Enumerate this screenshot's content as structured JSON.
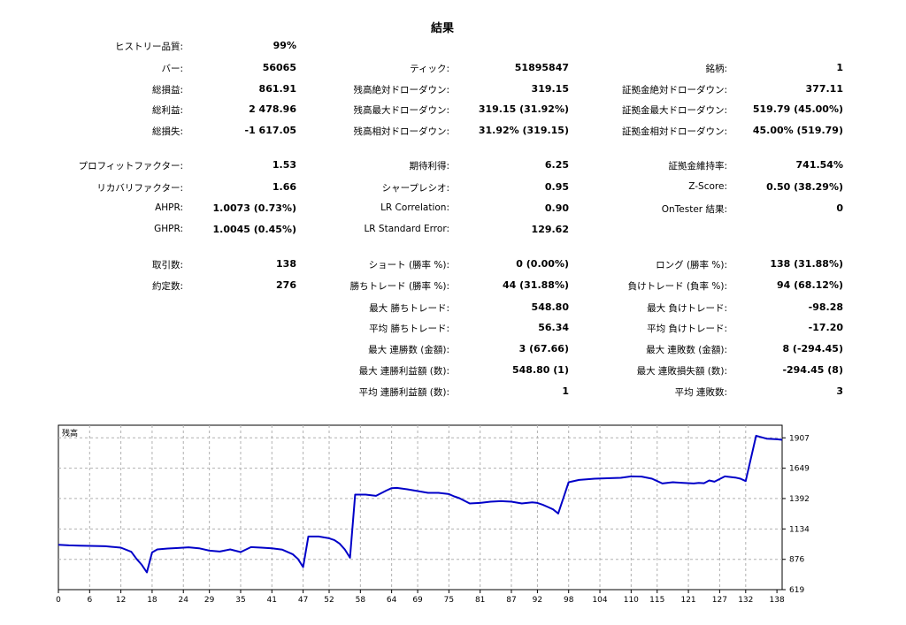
{
  "title": "結果",
  "rows": [
    [
      [
        "ヒストリー品質:",
        "99%"
      ],
      null,
      null
    ],
    [
      [
        "バー:",
        "56065"
      ],
      [
        "ティック:",
        "51895847"
      ],
      [
        "銘柄:",
        "1"
      ]
    ],
    [
      [
        "総損益:",
        "861.91"
      ],
      [
        "残高絶対ドローダウン:",
        "319.15"
      ],
      [
        "証拠金絶対ドローダウン:",
        "377.11"
      ]
    ],
    [
      [
        "総利益:",
        "2 478.96"
      ],
      [
        "残高最大ドローダウン:",
        "319.15 (31.92%)"
      ],
      [
        "証拠金最大ドローダウン:",
        "519.79 (45.00%)"
      ]
    ],
    [
      [
        "総損失:",
        "-1 617.05"
      ],
      [
        "残高相対ドローダウン:",
        "31.92% (319.15)"
      ],
      [
        "証拠金相対ドローダウン:",
        "45.00% (519.79)"
      ]
    ],
    [
      [
        "プロフィットファクター:",
        "1.53"
      ],
      [
        "期待利得:",
        "6.25"
      ],
      [
        "証拠金維持率:",
        "741.54%"
      ]
    ],
    [
      [
        "リカバリファクター:",
        "1.66"
      ],
      [
        "シャープレシオ:",
        "0.95"
      ],
      [
        "Z-Score:",
        "0.50 (38.29%)"
      ]
    ],
    [
      [
        "AHPR:",
        "1.0073 (0.73%)"
      ],
      [
        "LR Correlation:",
        "0.90"
      ],
      [
        "OnTester 結果:",
        "0"
      ]
    ],
    [
      [
        "GHPR:",
        "1.0045 (0.45%)"
      ],
      [
        "LR Standard Error:",
        "129.62"
      ],
      null
    ],
    [
      [
        "取引数:",
        "138"
      ],
      [
        "ショート (勝率 %):",
        "0 (0.00%)"
      ],
      [
        "ロング (勝率 %):",
        "138 (31.88%)"
      ]
    ],
    [
      [
        "約定数:",
        "276"
      ],
      [
        "勝ちトレード (勝率 %):",
        "44 (31.88%)"
      ],
      [
        "負けトレード (負率 %):",
        "94 (68.12%)"
      ]
    ],
    [
      null,
      [
        "最大 勝ちトレード:",
        "548.80"
      ],
      [
        "最大 負けトレード:",
        "-98.28"
      ]
    ],
    [
      null,
      [
        "平均 勝ちトレード:",
        "56.34"
      ],
      [
        "平均 負けトレード:",
        "-17.20"
      ]
    ],
    [
      null,
      [
        "最大 連勝数 (金額):",
        "3 (67.66)"
      ],
      [
        "最大 連敗数 (金額):",
        "8 (-294.45)"
      ]
    ],
    [
      null,
      [
        "最大 連勝利益額 (数):",
        "548.80 (1)"
      ],
      [
        "最大 連敗損失額 (数):",
        "-294.45 (8)"
      ]
    ],
    [
      null,
      [
        "平均 連勝利益額 (数):",
        "1"
      ],
      [
        "平均 連敗数:",
        "3"
      ]
    ]
  ],
  "chart_data": {
    "type": "line",
    "title": "残高",
    "x_ticks": [
      0,
      6,
      12,
      18,
      24,
      29,
      35,
      41,
      47,
      52,
      58,
      64,
      69,
      75,
      81,
      87,
      92,
      98,
      104,
      110,
      115,
      121,
      127,
      132,
      138
    ],
    "y_ticks": [
      619,
      876,
      1134,
      1392,
      1649,
      1907
    ],
    "xlim": [
      0,
      139
    ],
    "ylim": [
      619,
      2014
    ],
    "grid": true,
    "line_color": "#0000c8",
    "series": [
      {
        "name": "",
        "x": [
          0,
          2,
          4,
          6,
          9,
          12,
          14,
          15,
          16,
          17,
          18,
          19,
          21,
          23,
          25,
          27,
          29,
          31,
          33,
          35,
          37,
          39,
          41,
          43,
          45,
          46,
          47,
          48,
          50,
          52,
          53,
          54,
          55,
          56,
          57,
          59,
          61,
          63,
          64,
          65,
          67,
          69,
          71,
          73,
          75,
          76,
          77,
          79,
          81,
          83,
          85,
          87,
          89,
          91,
          92,
          93,
          94,
          95,
          96,
          98,
          100,
          103,
          106,
          108,
          110,
          112,
          114,
          115,
          116,
          118,
          120,
          122,
          123,
          124,
          125,
          126,
          128,
          130,
          131,
          132,
          134,
          136,
          138,
          139
        ],
        "y": [
          1000,
          995,
          992,
          990,
          987,
          975,
          940,
          880,
          830,
          765,
          935,
          960,
          968,
          972,
          978,
          970,
          950,
          942,
          960,
          938,
          980,
          975,
          970,
          958,
          920,
          880,
          810,
          1070,
          1070,
          1055,
          1040,
          1010,
          960,
          890,
          1425,
          1425,
          1415,
          1460,
          1480,
          1482,
          1470,
          1455,
          1440,
          1440,
          1430,
          1410,
          1395,
          1350,
          1355,
          1365,
          1370,
          1365,
          1350,
          1360,
          1355,
          1340,
          1320,
          1300,
          1265,
          1530,
          1550,
          1560,
          1565,
          1568,
          1580,
          1578,
          1560,
          1540,
          1520,
          1530,
          1525,
          1520,
          1525,
          1522,
          1545,
          1535,
          1580,
          1570,
          1560,
          1540,
          1925,
          1900,
          1895,
          1890
        ]
      }
    ]
  }
}
